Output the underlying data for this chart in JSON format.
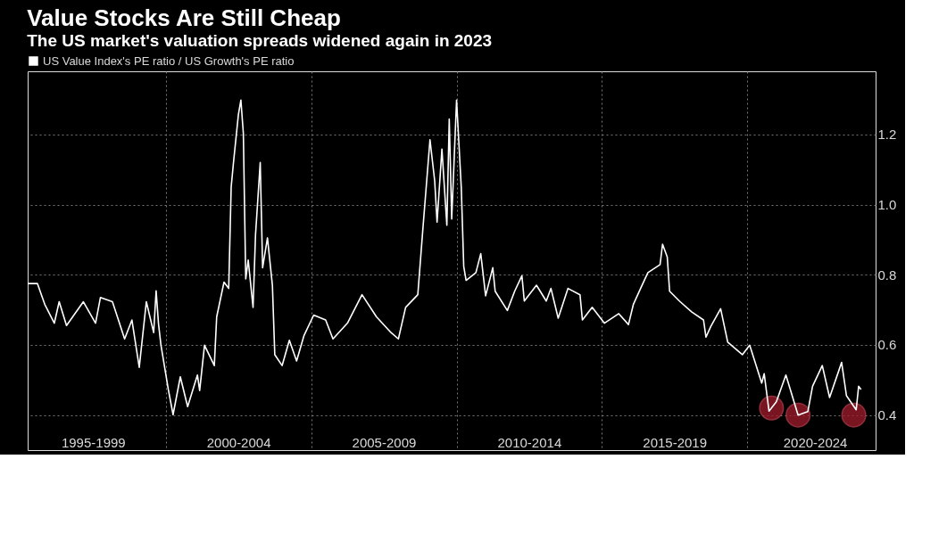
{
  "chart_data": {
    "type": "line",
    "title": "Value Stocks Are Still Cheap",
    "subtitle": "The US market's valuation spreads widened again in 2023",
    "xlim": [
      "1995-04",
      "2024-06"
    ],
    "xticks": [
      {
        "value": "1997-07",
        "label": "1995-1999"
      },
      {
        "value": "2000-01",
        "label": null
      },
      {
        "value": "2002-07",
        "label": "2000-2004"
      },
      {
        "value": "2005-01",
        "label": null
      },
      {
        "value": "2007-07",
        "label": "2005-2009"
      },
      {
        "value": "2010-01",
        "label": null
      },
      {
        "value": "2012-07",
        "label": "2010-2014"
      },
      {
        "value": "2015-01",
        "label": null
      },
      {
        "value": "2017-07",
        "label": "2015-2019"
      },
      {
        "value": "2020-01",
        "label": null
      },
      {
        "value": "2022-05",
        "label": "2020-2024"
      }
    ],
    "ylim": [
      0.3,
      1.38
    ],
    "yticks": [
      0.4,
      0.6,
      0.8,
      {
        "value": 1.0,
        "label": "1.0"
      },
      1.2
    ],
    "grid": true,
    "legend": "top left",
    "series": [
      {
        "name": "US Value Index's PE ratio / US Growth's PE ratio",
        "color": "#ffffff",
        "x": [
          "1995-04",
          "1995-08",
          "1995-11",
          "1996-03",
          "1996-05",
          "1996-08",
          "1997-03",
          "1997-08",
          "1997-10",
          "1998-03",
          "1998-08",
          "1998-11",
          "1999-02",
          "1999-05",
          "1999-08",
          "1999-09",
          "1999-10",
          "1999-11",
          "2000-02",
          "2000-04",
          "2000-07",
          "2000-10",
          "2001-02",
          "2001-03",
          "2001-05",
          "2001-09",
          "2001-10",
          "2002-01",
          "2002-03",
          "2002-04",
          "2002-05",
          "2002-07",
          "2002-08",
          "2002-09",
          "2002-10",
          "2002-11",
          "2003-01",
          "2003-02",
          "2003-04",
          "2003-05",
          "2003-07",
          "2003-09",
          "2003-10",
          "2004-01",
          "2004-04",
          "2004-07",
          "2004-10",
          "2005-02",
          "2005-07",
          "2005-10",
          "2006-04",
          "2006-10",
          "2007-04",
          "2007-10",
          "2008-01",
          "2008-04",
          "2008-09",
          "2008-11",
          "2009-02",
          "2009-04",
          "2009-05",
          "2009-07",
          "2009-09",
          "2009-10",
          "2009-11",
          "2010-01",
          "2010-03",
          "2010-04",
          "2010-05",
          "2010-09",
          "2010-11",
          "2011-01",
          "2011-04",
          "2011-05",
          "2011-10",
          "2012-01",
          "2012-04",
          "2012-05",
          "2012-10",
          "2013-02",
          "2013-04",
          "2013-07",
          "2013-11",
          "2014-04",
          "2014-05",
          "2014-09",
          "2015-02",
          "2015-08",
          "2015-12",
          "2016-02",
          "2016-05",
          "2016-08",
          "2017-01",
          "2017-02",
          "2017-04",
          "2017-05",
          "2017-09",
          "2018-02",
          "2018-07",
          "2018-08",
          "2018-10",
          "2019-02",
          "2019-05",
          "2019-11",
          "2020-02",
          "2020-07",
          "2020-08",
          "2020-10",
          "2021-01",
          "2021-05",
          "2021-10",
          "2022-02",
          "2022-04",
          "2022-08",
          "2022-11",
          "2023-04",
          "2023-06",
          "2023-10",
          "2023-11",
          "2023-12"
        ],
        "values": [
          0.775,
          0.775,
          0.716,
          0.662,
          0.723,
          0.655,
          0.723,
          0.662,
          0.735,
          0.723,
          0.617,
          0.671,
          0.536,
          0.723,
          0.635,
          0.754,
          0.66,
          0.599,
          0.473,
          0.401,
          0.509,
          0.424,
          0.514,
          0.47,
          0.599,
          0.541,
          0.68,
          0.779,
          0.761,
          1.05,
          1.122,
          1.257,
          1.298,
          1.203,
          0.788,
          0.842,
          0.707,
          0.914,
          1.12,
          0.82,
          0.905,
          0.77,
          0.572,
          0.541,
          0.613,
          0.554,
          0.626,
          0.685,
          0.671,
          0.617,
          0.662,
          0.743,
          0.68,
          0.635,
          0.617,
          0.707,
          0.743,
          0.923,
          1.185,
          1.068,
          0.95,
          1.158,
          0.941,
          1.244,
          0.959,
          1.298,
          1.05,
          0.824,
          0.784,
          0.806,
          0.86,
          0.74,
          0.82,
          0.753,
          0.698,
          0.753,
          0.797,
          0.725,
          0.77,
          0.725,
          0.761,
          0.676,
          0.761,
          0.743,
          0.671,
          0.707,
          0.662,
          0.689,
          0.658,
          0.716,
          0.761,
          0.806,
          0.829,
          0.887,
          0.851,
          0.753,
          0.725,
          0.694,
          0.671,
          0.622,
          0.653,
          0.703,
          0.608,
          0.572,
          0.599,
          0.491,
          0.518,
          0.411,
          0.438,
          0.514,
          0.4,
          0.41,
          0.482,
          0.541,
          0.45,
          0.55,
          0.455,
          0.415,
          0.482,
          0.473
        ]
      },
      {
        "color": "#a01c2c",
        "type": "scatter",
        "marker": "circle",
        "x": [
          "2020-11",
          "2021-10",
          "2023-09"
        ],
        "values": [
          0.42,
          0.4,
          0.4
        ]
      }
    ]
  }
}
